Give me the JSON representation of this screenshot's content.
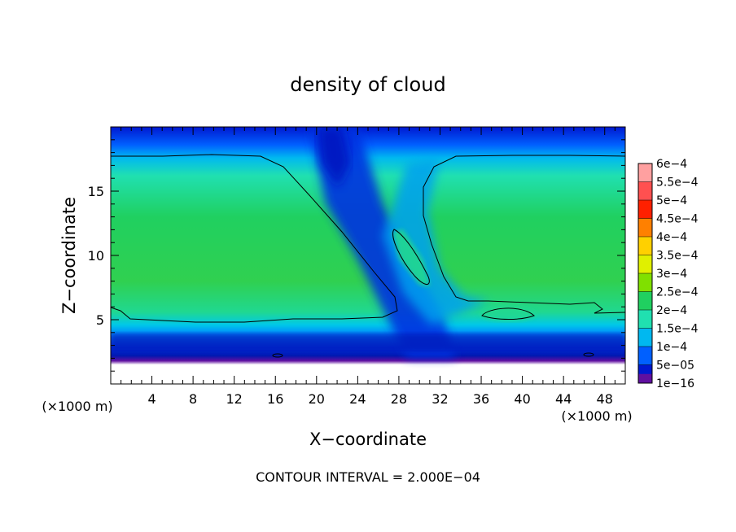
{
  "chart_data": {
    "type": "heatmap",
    "title": "density of cloud",
    "xlabel": "X−coordinate",
    "ylabel": "Z−coordinate",
    "x_unit": "(×1000 m)",
    "y_unit": "(×1000 m)",
    "xlim": [
      0,
      50
    ],
    "ylim": [
      0,
      20
    ],
    "x_ticks": [
      4,
      8,
      12,
      16,
      20,
      24,
      28,
      32,
      36,
      40,
      44,
      48
    ],
    "y_ticks": [
      5,
      10,
      15
    ],
    "footer": "CONTOUR INTERVAL = 2.000E−04",
    "colorbar": {
      "labels": [
        "6e−4",
        "5.5e−4",
        "5e−4",
        "4.5e−4",
        "4e−4",
        "3.5e−4",
        "3e−4",
        "2.5e−4",
        "2e−4",
        "1.5e−4",
        "1e−4",
        "5e−05",
        "1e−16"
      ],
      "values": [
        0.0006,
        0.00055,
        0.0005,
        0.00045,
        0.0004,
        0.00035,
        0.0003,
        0.00025,
        0.0002,
        0.00015,
        0.0001,
        5e-05,
        1e-16
      ],
      "colors": [
        "#ffa0a0",
        "#ff5050",
        "#ff2000",
        "#ff8000",
        "#ffd000",
        "#e0f000",
        "#80e000",
        "#20d060",
        "#20e0b0",
        "#00b8f0",
        "#0060ff",
        "#0018d0",
        "#6010a0"
      ]
    },
    "contour_level": 0.0002
  }
}
